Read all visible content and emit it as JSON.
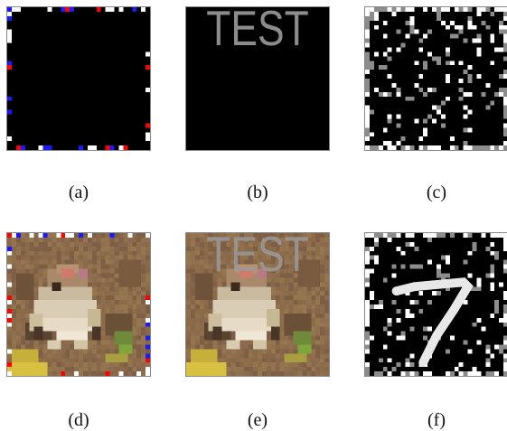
{
  "figure": {
    "captions": [
      "(a)",
      "(b)",
      "(c)",
      "(d)",
      "(e)",
      "(f)"
    ],
    "trigger_text": "TEST",
    "colors": {
      "black": "#000000",
      "white": "#ffffff",
      "gray": "#8c8c8c",
      "red": "#ff0000",
      "blue": "#1a1aff",
      "frog_brown": "#8a6a48"
    }
  }
}
